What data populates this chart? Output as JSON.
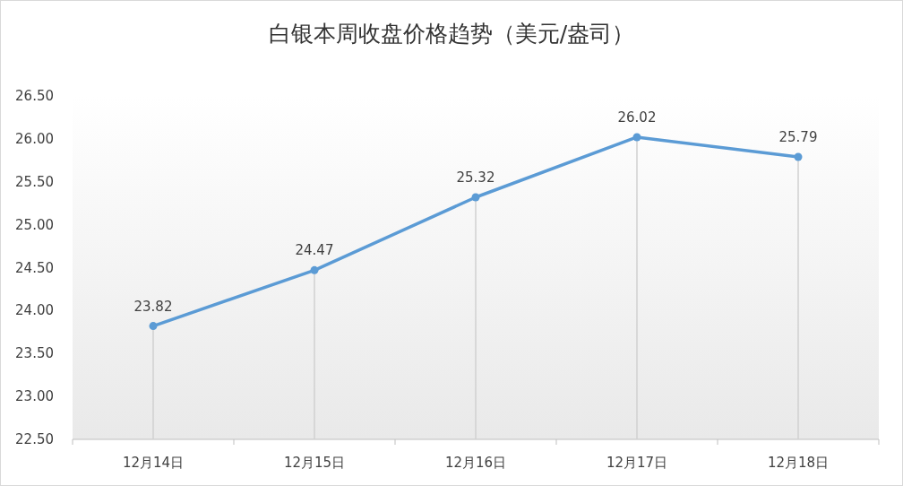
{
  "chart_data": {
    "type": "line",
    "title": "白银本周收盘价格趋势（美元/盎司）",
    "categories": [
      "12月14日",
      "12月15日",
      "12月16日",
      "12月17日",
      "12月18日"
    ],
    "series": [
      {
        "color": "#5b9bd5",
        "values": [
          23.82,
          24.47,
          25.32,
          26.02,
          25.79
        ]
      }
    ],
    "ylim": [
      22.5,
      26.5
    ],
    "yticks": [
      {
        "value": 22.5,
        "label": "22.50"
      },
      {
        "value": 23,
        "label": "23.00"
      },
      {
        "value": 23.5,
        "label": "23.50"
      },
      {
        "value": 24,
        "label": "24.00"
      },
      {
        "value": 24.5,
        "label": "24.50"
      },
      {
        "value": 25,
        "label": "25.00"
      },
      {
        "value": 25.5,
        "label": "25.50"
      },
      {
        "value": 26,
        "label": "26.00"
      },
      {
        "value": 26.5,
        "label": "26.50"
      }
    ],
    "data_labels": true,
    "marker": "circle",
    "line_style": "solid",
    "grid": "x"
  }
}
